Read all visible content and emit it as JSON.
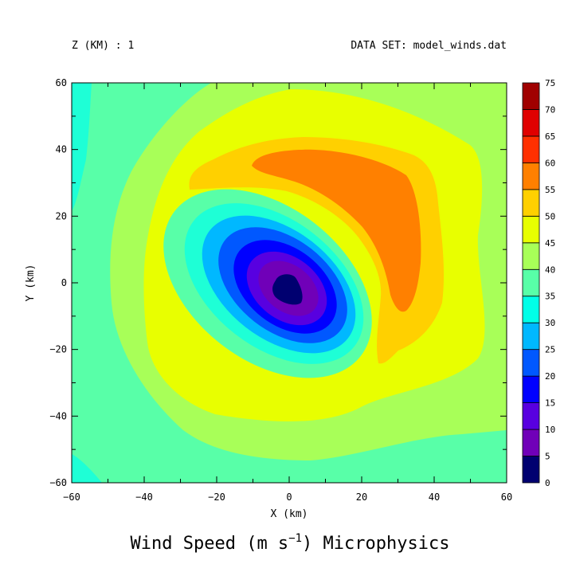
{
  "header": {
    "left": "Z (KM) : 1",
    "right": "DATA SET: model_winds.dat"
  },
  "title": {
    "main": "Wind Speed (m s",
    "exponent": "−1",
    "suffix": ") Microphysics"
  },
  "chart_data": {
    "type": "heatmap",
    "subtype": "filled-contour",
    "xlabel": "X (km)",
    "ylabel": "Y (km)",
    "xlim": [
      -60,
      60
    ],
    "ylim": [
      -60,
      60
    ],
    "x_ticks": [
      -60,
      -40,
      -20,
      0,
      20,
      40,
      60
    ],
    "y_ticks": [
      -60,
      -40,
      -20,
      0,
      20,
      40,
      60
    ],
    "x_tick_labels": [
      "−60",
      "−40",
      "−20",
      "0",
      "20",
      "40",
      "60"
    ],
    "y_tick_labels": [
      "−60",
      "−40",
      "−20",
      "0",
      "20",
      "40",
      "60"
    ],
    "grid": false,
    "colorbar": {
      "levels": [
        0,
        5,
        10,
        15,
        20,
        25,
        30,
        35,
        40,
        45,
        50,
        55,
        60,
        65,
        70,
        75
      ],
      "labels": [
        "0",
        "5",
        "10",
        "15",
        "20",
        "25",
        "30",
        "35",
        "40",
        "45",
        "50",
        "55",
        "60",
        "65",
        "70",
        "75"
      ],
      "colors": [
        "#000070",
        "#7000b8",
        "#5800e0",
        "#0000ff",
        "#0058ff",
        "#00b8ff",
        "#00ffe8",
        "#58ffa8",
        "#a8ff58",
        "#e8ff00",
        "#ffd000",
        "#ff8000",
        "#ff3000",
        "#e00000",
        "#a00000"
      ],
      "placement": "right"
    },
    "features": {
      "eye_center": [
        0,
        -2
      ],
      "eye_min_speed": "0-5",
      "max_wind_region": "55-60, north-east arc around the center",
      "background_speed": "40-45"
    }
  }
}
